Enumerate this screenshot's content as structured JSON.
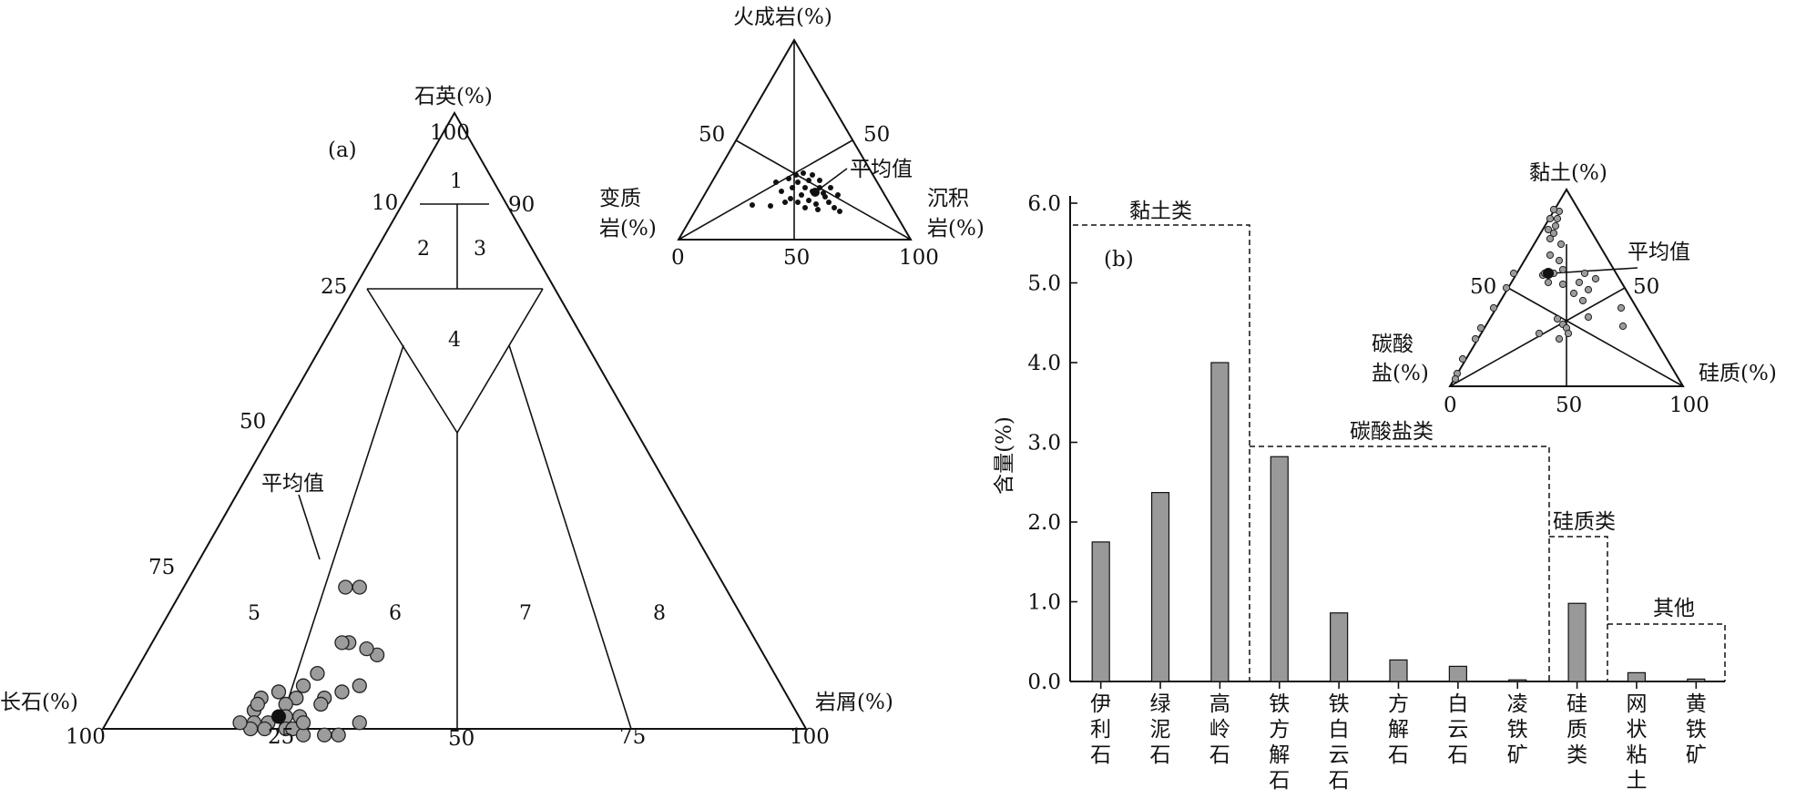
{
  "panel_a": {
    "label": "(a)",
    "vertex_top": "石英(%)",
    "vertex_left": "长石(%)",
    "vertex_right": "岩屑(%)",
    "left_side_ticks": [
      "10",
      "25",
      "50",
      "75"
    ],
    "top_value": "100",
    "right_side_tick": "90",
    "bottom_ticks": [
      "100",
      "25",
      "50",
      "75",
      "100"
    ],
    "zones": [
      "1",
      "2",
      "3",
      "4",
      "5",
      "6",
      "7",
      "8"
    ],
    "mean_label": "平均值"
  },
  "inset_a": {
    "vertex_top": "火成岩(%)",
    "vertex_left_line1": "变质",
    "vertex_left_line2": "岩(%)",
    "vertex_right_line1": "沉积",
    "vertex_right_line2": "岩(%)",
    "side_left_tick": "50",
    "side_right_tick": "50",
    "bottom_ticks": [
      "0",
      "50",
      "100"
    ],
    "mean_label": "平均值"
  },
  "panel_b": {
    "label": "(b)",
    "ylabel": "含量(%)",
    "group_labels": [
      "黏土类",
      "碳酸盐类",
      "硅质类",
      "其他"
    ]
  },
  "inset_b": {
    "vertex_top": "黏土(%)",
    "vertex_left_line1": "碳酸",
    "vertex_left_line2": "盐(%)",
    "vertex_right": "硅质(%)",
    "side_left_tick": "50",
    "side_right_tick": "50",
    "bottom_ticks": [
      "0",
      "50",
      "100"
    ],
    "mean_label": "平均值"
  },
  "chart_data": [
    {
      "type": "bar",
      "panel": "b",
      "categories": [
        "伊利石",
        "绿泥石",
        "高岭石",
        "铁方解石",
        "铁白云石",
        "方解石",
        "白云石",
        "凌铁矿",
        "硅质类",
        "网状粘土",
        "黄铁矿"
      ],
      "values": [
        1.75,
        2.37,
        4.0,
        2.82,
        0.86,
        0.27,
        0.19,
        0.02,
        0.98,
        0.11,
        0.03
      ],
      "ylabel": "含量(%)",
      "ylim": [
        0,
        6.0
      ],
      "yticks": [
        "0.0",
        "1.0",
        "2.0",
        "3.0",
        "4.0",
        "5.0",
        "6.0"
      ],
      "groups": [
        {
          "name": "黏土类",
          "categories": [
            "伊利石",
            "绿泥石",
            "高岭石"
          ]
        },
        {
          "name": "碳酸盐类",
          "categories": [
            "铁方解石",
            "铁白云石",
            "方解石",
            "白云石",
            "凌铁矿"
          ]
        },
        {
          "name": "硅质类",
          "categories": [
            "硅质类"
          ]
        },
        {
          "name": "其他",
          "categories": [
            "网状粘土",
            "黄铁矿"
          ]
        }
      ]
    },
    {
      "type": "scatter",
      "panel": "a",
      "ternary": true,
      "components": [
        "石英(%)",
        "长石(%)",
        "岩屑(%)"
      ],
      "points": [
        [
          52,
          25
        ],
        [
          54,
          23
        ],
        [
          58,
          28
        ],
        [
          59,
          27
        ],
        [
          55,
          33
        ],
        [
          56,
          31
        ],
        [
          60,
          33
        ],
        [
          65,
          26
        ],
        [
          72,
          22
        ],
        [
          63,
          31
        ],
        [
          66,
          29
        ],
        [
          68,
          25
        ],
        [
          70,
          25
        ],
        [
          67,
          29
        ],
        [
          72,
          24
        ],
        [
          75,
          20
        ],
        [
          77,
          20
        ],
        [
          73,
          25
        ],
        [
          76,
          23
        ],
        [
          74,
          26
        ],
        [
          78,
          21
        ],
        [
          77,
          23
        ],
        [
          79,
          21
        ],
        [
          80,
          19
        ],
        [
          71,
          27
        ],
        [
          73,
          27
        ],
        [
          69,
          32
        ],
        [
          67,
          34
        ],
        [
          63,
          36
        ],
        [
          76,
          20
        ],
        [
          72,
          29
        ],
        [
          71,
          28
        ]
      ],
      "point_encoding": "[长石(%), 岩屑(%)]",
      "mean": [
        74,
        24
      ]
    }
  ]
}
